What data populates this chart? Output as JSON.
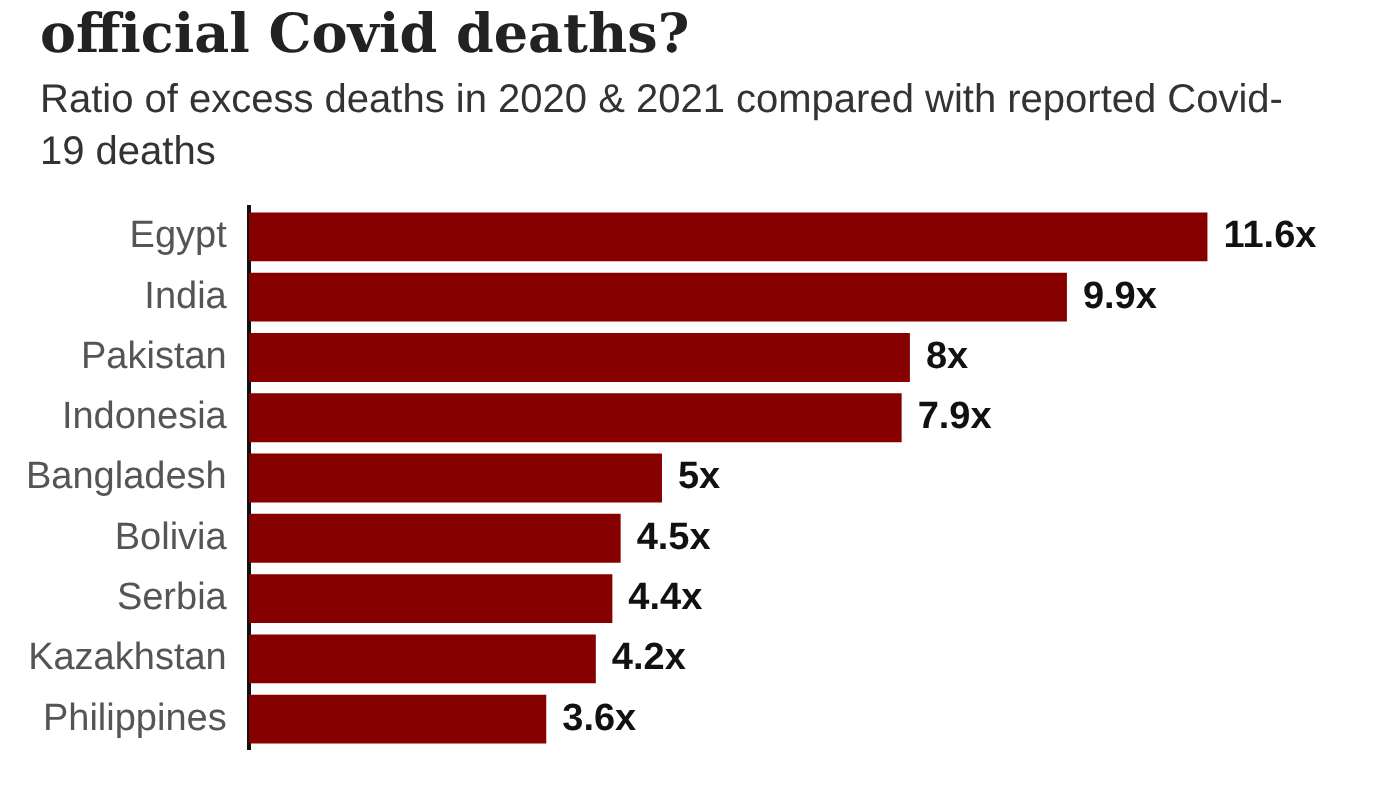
{
  "chart_data": {
    "type": "bar",
    "orientation": "horizontal",
    "title": "official Covid deaths?",
    "subtitle": "Ratio of excess deaths in 2020 & 2021 compared with reported Covid-19 deaths",
    "categories": [
      "Egypt",
      "India",
      "Pakistan",
      "Indonesia",
      "Bangladesh",
      "Bolivia",
      "Serbia",
      "Kazakhstan",
      "Philippines"
    ],
    "values": [
      11.6,
      9.9,
      8,
      7.9,
      5,
      4.5,
      4.4,
      4.2,
      3.6
    ],
    "value_labels": [
      "11.6x",
      "9.9x",
      "8x",
      "7.9x",
      "5x",
      "4.5x",
      "4.4x",
      "4.2x",
      "3.6x"
    ],
    "color": "#870000",
    "grid": false,
    "legend": false,
    "tick_labels": "y"
  }
}
